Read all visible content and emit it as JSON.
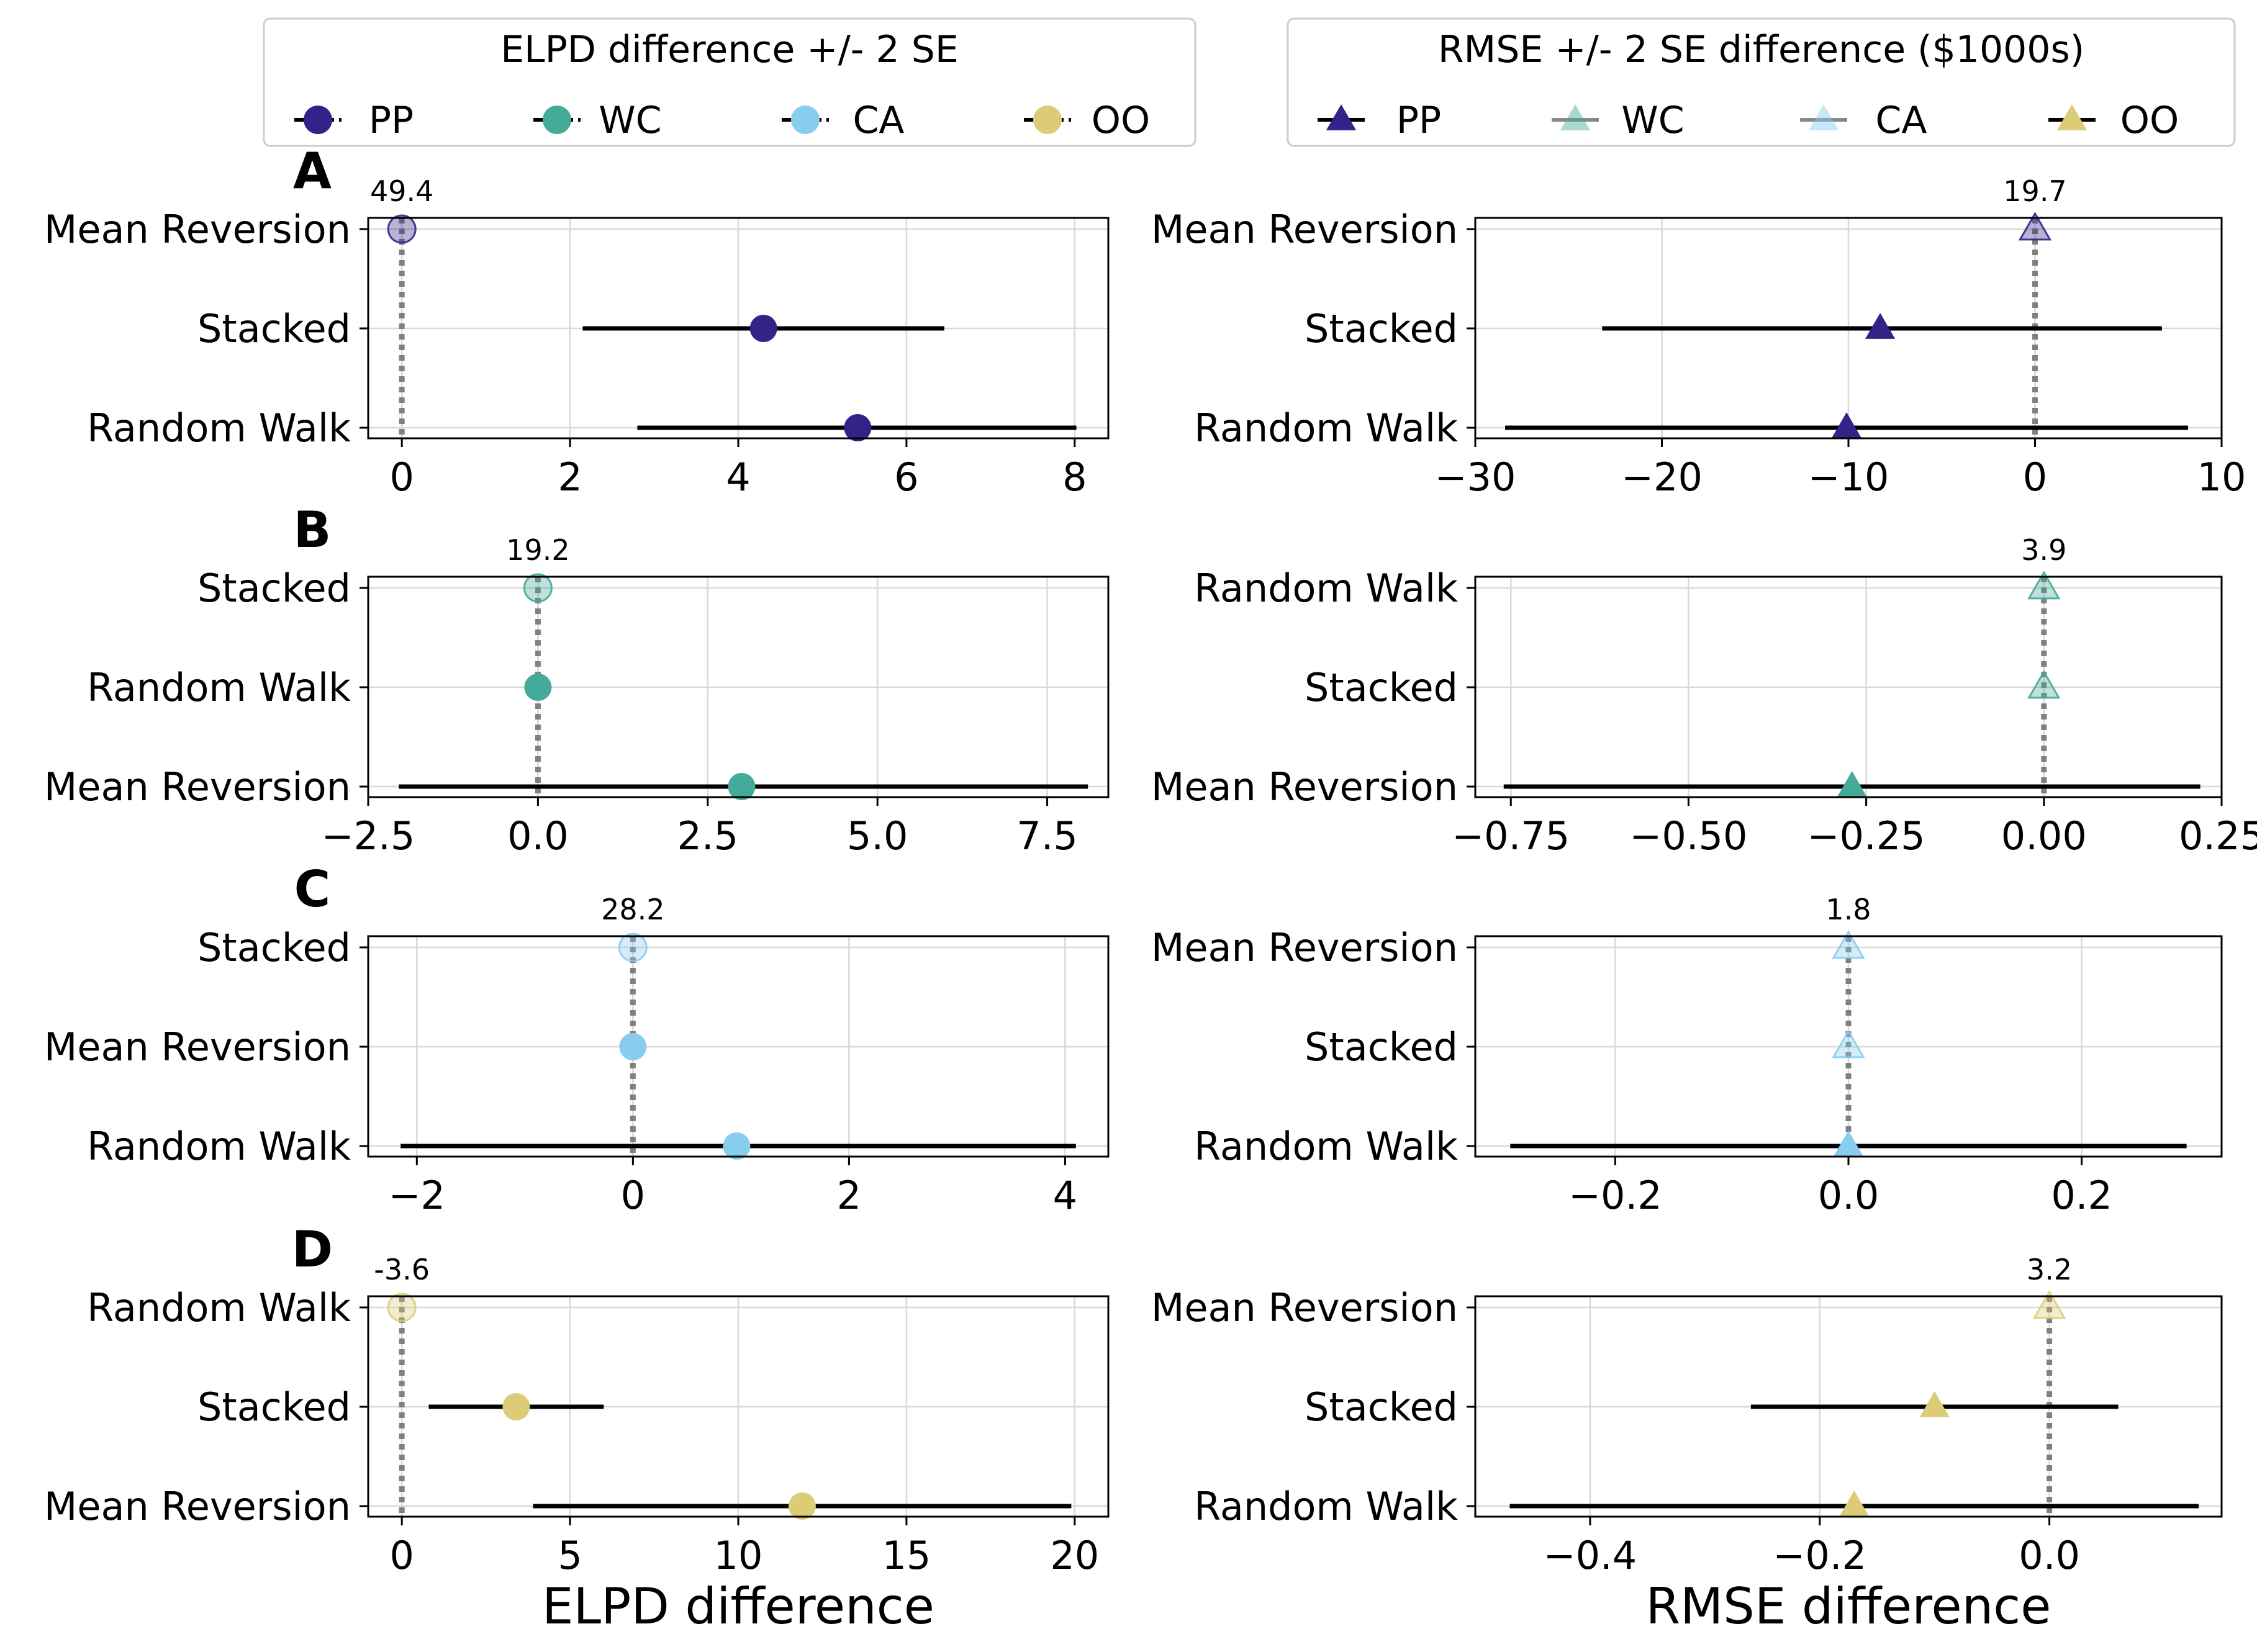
{
  "colors": {
    "PP": "#332288",
    "WC": "#44AA99",
    "CA": "#88CCEE",
    "OO": "#DDCC77",
    "errorbar": "#000000",
    "reference_line": "#808080",
    "grid": "#d9d9d9"
  },
  "legends": {
    "left": {
      "title": "ELPD difference +/- 2 SE",
      "marker": "circle",
      "entries": [
        {
          "key": "PP",
          "label": "PP"
        },
        {
          "key": "WC",
          "label": "WC"
        },
        {
          "key": "CA",
          "label": "CA"
        },
        {
          "key": "OO",
          "label": "OO"
        }
      ]
    },
    "right": {
      "title": "RMSE +/- 2 SE difference ($1000s)",
      "marker": "triangle",
      "entries": [
        {
          "key": "PP",
          "label": "PP"
        },
        {
          "key": "WC",
          "label": "WC"
        },
        {
          "key": "CA",
          "label": "CA"
        },
        {
          "key": "OO",
          "label": "OO"
        }
      ]
    }
  },
  "axis_labels": {
    "left_x": "ELPD difference",
    "right_x": "RMSE difference"
  },
  "chart_data": [
    {
      "panel": "A",
      "column": "left",
      "type": "dot-errorbar",
      "marker": "circle",
      "color_key": "PP",
      "best_label": "49.4",
      "xlim": [
        -0.4,
        8.4
      ],
      "ticks": [
        0,
        2,
        4,
        6,
        8
      ],
      "tick_labels": [
        "0",
        "2",
        "4",
        "6",
        "8"
      ],
      "rows": [
        {
          "label": "Mean Reversion",
          "value": 0,
          "lo": null,
          "hi": null,
          "reference": true
        },
        {
          "label": "Stacked",
          "value": 4.3,
          "lo": 2.15,
          "hi": 6.45,
          "reference": false
        },
        {
          "label": "Random Walk",
          "value": 5.42,
          "lo": 2.8,
          "hi": 8.02,
          "reference": false
        }
      ]
    },
    {
      "panel": "A",
      "column": "right",
      "type": "dot-errorbar",
      "marker": "triangle",
      "color_key": "PP",
      "best_label": "19.7",
      "xlim": [
        -30,
        10
      ],
      "ticks": [
        -30,
        -20,
        -10,
        0,
        10
      ],
      "tick_labels": [
        "−30",
        "−20",
        "−10",
        "0",
        "10"
      ],
      "rows": [
        {
          "label": "Mean Reversion",
          "value": 0,
          "lo": null,
          "hi": null,
          "reference": true
        },
        {
          "label": "Stacked",
          "value": -8.3,
          "lo": -23.2,
          "hi": 6.8,
          "reference": false
        },
        {
          "label": "Random Walk",
          "value": -10.1,
          "lo": -28.4,
          "hi": 8.2,
          "reference": false
        }
      ]
    },
    {
      "panel": "B",
      "column": "left",
      "type": "dot-errorbar",
      "marker": "circle",
      "color_key": "WC",
      "best_label": "19.2",
      "xlim": [
        -2.5,
        8.4
      ],
      "ticks": [
        -2.5,
        0,
        2.5,
        5,
        7.5
      ],
      "tick_labels": [
        "−2.5",
        "0.0",
        "2.5",
        "5.0",
        "7.5"
      ],
      "rows": [
        {
          "label": "Stacked",
          "value": 0,
          "lo": null,
          "hi": null,
          "reference": true
        },
        {
          "label": "Random Walk",
          "value": 0,
          "lo": null,
          "hi": null,
          "reference": false
        },
        {
          "label": "Mean Reversion",
          "value": 3.0,
          "lo": -2.05,
          "hi": 8.1,
          "reference": false
        }
      ]
    },
    {
      "panel": "B",
      "column": "right",
      "type": "dot-errorbar",
      "marker": "triangle",
      "color_key": "WC",
      "best_label": "3.9",
      "xlim": [
        -0.8,
        0.25
      ],
      "ticks": [
        -0.75,
        -0.5,
        -0.25,
        0,
        0.25
      ],
      "tick_labels": [
        "−0.75",
        "−0.50",
        "−0.25",
        "0.00",
        "0.25"
      ],
      "rows": [
        {
          "label": "Random Walk",
          "value": 0,
          "lo": null,
          "hi": null,
          "reference": true
        },
        {
          "label": "Stacked",
          "value": 0,
          "lo": null,
          "hi": null,
          "reference": true
        },
        {
          "label": "Mean Reversion",
          "value": -0.27,
          "lo": -0.76,
          "hi": 0.22,
          "reference": false
        }
      ]
    },
    {
      "panel": "C",
      "column": "left",
      "type": "dot-errorbar",
      "marker": "circle",
      "color_key": "CA",
      "best_label": "28.2",
      "xlim": [
        -2.45,
        4.4
      ],
      "ticks": [
        -2,
        0,
        2,
        4
      ],
      "tick_labels": [
        "−2",
        "0",
        "2",
        "4"
      ],
      "rows": [
        {
          "label": "Stacked",
          "value": 0,
          "lo": null,
          "hi": null,
          "reference": true
        },
        {
          "label": "Mean Reversion",
          "value": 0,
          "lo": null,
          "hi": null,
          "reference": false
        },
        {
          "label": "Random Walk",
          "value": 0.96,
          "lo": -2.15,
          "hi": 4.1,
          "reference": false
        }
      ]
    },
    {
      "panel": "C",
      "column": "right",
      "type": "dot-errorbar",
      "marker": "triangle",
      "color_key": "CA",
      "best_label": "1.8",
      "xlim": [
        -0.32,
        0.32
      ],
      "ticks": [
        -0.2,
        0,
        0.2
      ],
      "tick_labels": [
        "−0.2",
        "0.0",
        "0.2"
      ],
      "rows": [
        {
          "label": "Mean Reversion",
          "value": 0,
          "lo": null,
          "hi": null,
          "reference": true
        },
        {
          "label": "Stacked",
          "value": 0,
          "lo": null,
          "hi": null,
          "reference": true
        },
        {
          "label": "Random Walk",
          "value": 0,
          "lo": -0.29,
          "hi": 0.29,
          "reference": false
        }
      ]
    },
    {
      "panel": "D",
      "column": "left",
      "type": "dot-errorbar",
      "marker": "circle",
      "color_key": "OO",
      "best_label": "-3.6",
      "xlim": [
        -1,
        21
      ],
      "ticks": [
        0,
        5,
        10,
        15,
        20
      ],
      "tick_labels": [
        "0",
        "5",
        "10",
        "15",
        "20"
      ],
      "rows": [
        {
          "label": "Random Walk",
          "value": 0,
          "lo": null,
          "hi": null,
          "reference": true
        },
        {
          "label": "Stacked",
          "value": 3.4,
          "lo": 0.8,
          "hi": 6.0,
          "reference": false
        },
        {
          "label": "Mean Reversion",
          "value": 11.9,
          "lo": 3.9,
          "hi": 19.9,
          "reference": false
        }
      ]
    },
    {
      "panel": "D",
      "column": "right",
      "type": "dot-errorbar",
      "marker": "triangle",
      "color_key": "OO",
      "best_label": "3.2",
      "xlim": [
        -0.5,
        0.15
      ],
      "ticks": [
        -0.4,
        -0.2,
        0
      ],
      "tick_labels": [
        "−0.4",
        "−0.2",
        "0.0"
      ],
      "rows": [
        {
          "label": "Mean Reversion",
          "value": 0,
          "lo": null,
          "hi": null,
          "reference": true
        },
        {
          "label": "Stacked",
          "value": -0.1,
          "lo": -0.26,
          "hi": 0.06,
          "reference": false
        },
        {
          "label": "Random Walk",
          "value": -0.17,
          "lo": -0.47,
          "hi": 0.13,
          "reference": false
        }
      ]
    }
  ]
}
